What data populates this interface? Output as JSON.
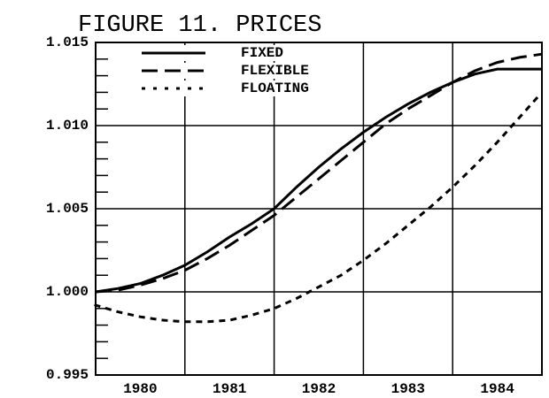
{
  "chart_data": {
    "type": "line",
    "title": "FIGURE 11. PRICES",
    "x": [
      1980,
      1980.25,
      1980.5,
      1980.75,
      1981,
      1981.25,
      1981.5,
      1981.75,
      1982,
      1982.25,
      1982.5,
      1982.75,
      1983,
      1983.25,
      1983.5,
      1983.75,
      1984,
      1984.25,
      1984.5,
      1984.75,
      1985
    ],
    "series": [
      {
        "name": "FIXED",
        "color": "#000000",
        "dash": "solid",
        "values": [
          1.0,
          1.0002,
          1.0005,
          1.001,
          1.0016,
          1.0024,
          1.0033,
          1.0041,
          1.005,
          1.0063,
          1.0075,
          1.0086,
          1.0096,
          1.0105,
          1.0113,
          1.012,
          1.0126,
          1.0131,
          1.0134,
          1.0134,
          1.0134
        ]
      },
      {
        "name": "FLEXIBLE",
        "color": "#000000",
        "dash": "dashed",
        "values": [
          1.0,
          1.0001,
          1.0004,
          1.0008,
          1.0013,
          1.002,
          1.0028,
          1.0037,
          1.0046,
          1.0057,
          1.0068,
          1.0079,
          1.009,
          1.0101,
          1.011,
          1.0118,
          1.0126,
          1.0133,
          1.0138,
          1.0141,
          1.0143
        ]
      },
      {
        "name": "FLOATING",
        "color": "#000000",
        "dash": "dotted",
        "values": [
          0.9992,
          0.9988,
          0.9985,
          0.9983,
          0.9982,
          0.9982,
          0.9983,
          0.9986,
          0.999,
          0.9996,
          1.0003,
          1.001,
          1.0019,
          1.0029,
          1.004,
          1.0051,
          1.0063,
          1.0076,
          1.009,
          1.0105,
          1.012
        ]
      }
    ],
    "xlim": [
      1980,
      1985
    ],
    "xticks": [
      {
        "value": 1980.5,
        "label": "1980"
      },
      {
        "value": 1981.5,
        "label": "1981"
      },
      {
        "value": 1982.5,
        "label": "1982"
      },
      {
        "value": 1983.5,
        "label": "1983"
      },
      {
        "value": 1984.5,
        "label": "1984"
      }
    ],
    "xgrid": [
      1981,
      1982,
      1983,
      1984
    ],
    "ylim": [
      0.995,
      1.015
    ],
    "yticks": [
      0.995,
      {
        "value": 1,
        "label": "1.000"
      },
      1.005,
      {
        "value": 1.01,
        "label": "1.010"
      },
      1.015
    ],
    "grid": true,
    "legend": "upper left"
  }
}
